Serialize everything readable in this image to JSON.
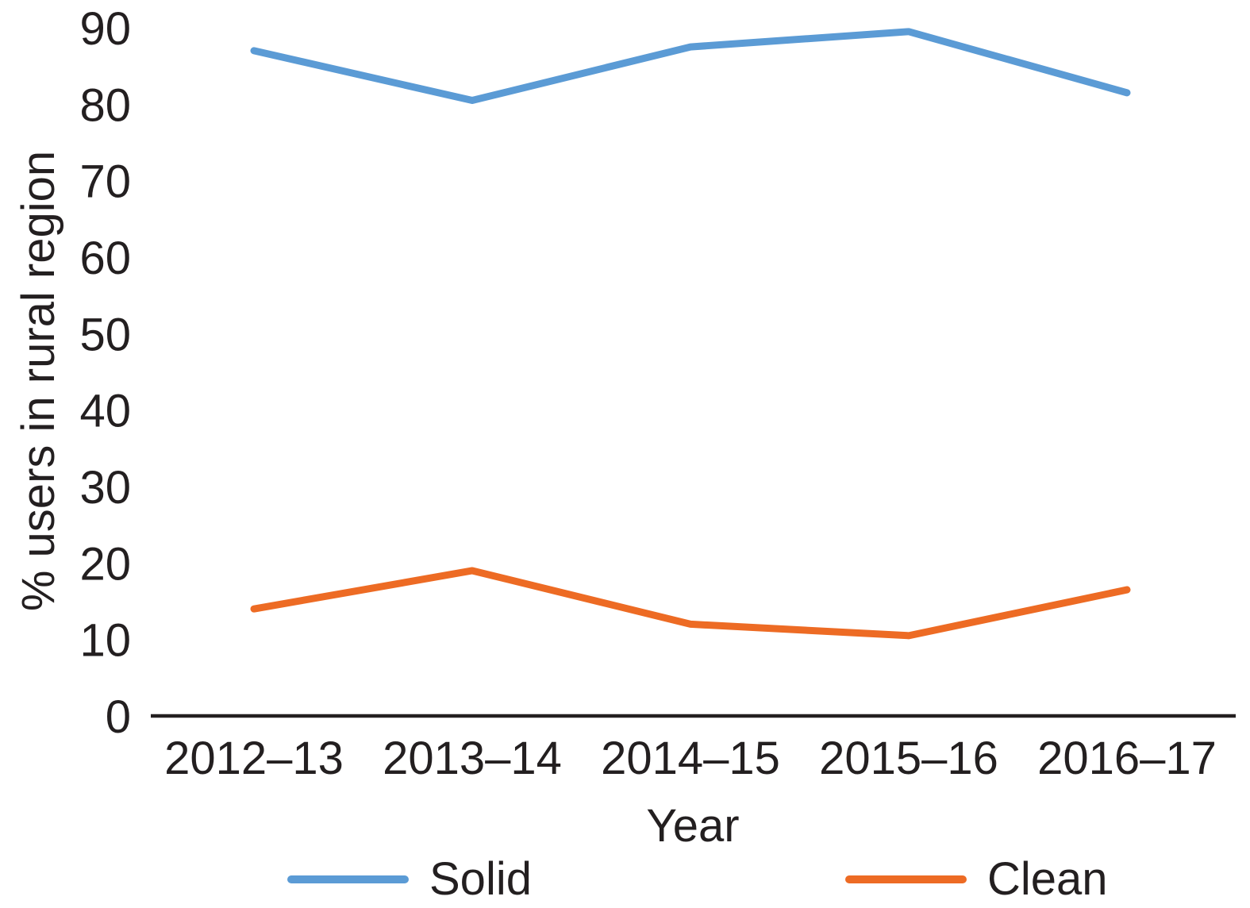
{
  "figure": {
    "background": "#ffffff",
    "text_color": "#231f20",
    "axis_color": "#231f20"
  },
  "chart_data": {
    "type": "line",
    "title": "",
    "categories": [
      "2012–13",
      "2013–14",
      "2014–15",
      "2015–16",
      "2016–17"
    ],
    "series": [
      {
        "name": "Solid",
        "color": "#5b9bd5",
        "values": [
          87,
          80.5,
          87.5,
          89.5,
          81.5
        ]
      },
      {
        "name": "Clean",
        "color": "#ed6b24",
        "values": [
          14,
          19,
          12,
          10.5,
          16.5
        ]
      }
    ],
    "xlabel": "Year",
    "ylabel": "% users in rural region",
    "ylim": [
      0,
      90
    ],
    "yticks": [
      0,
      10,
      20,
      30,
      40,
      50,
      60,
      70,
      80,
      90
    ],
    "grid": false,
    "legend_position": "bottom"
  }
}
